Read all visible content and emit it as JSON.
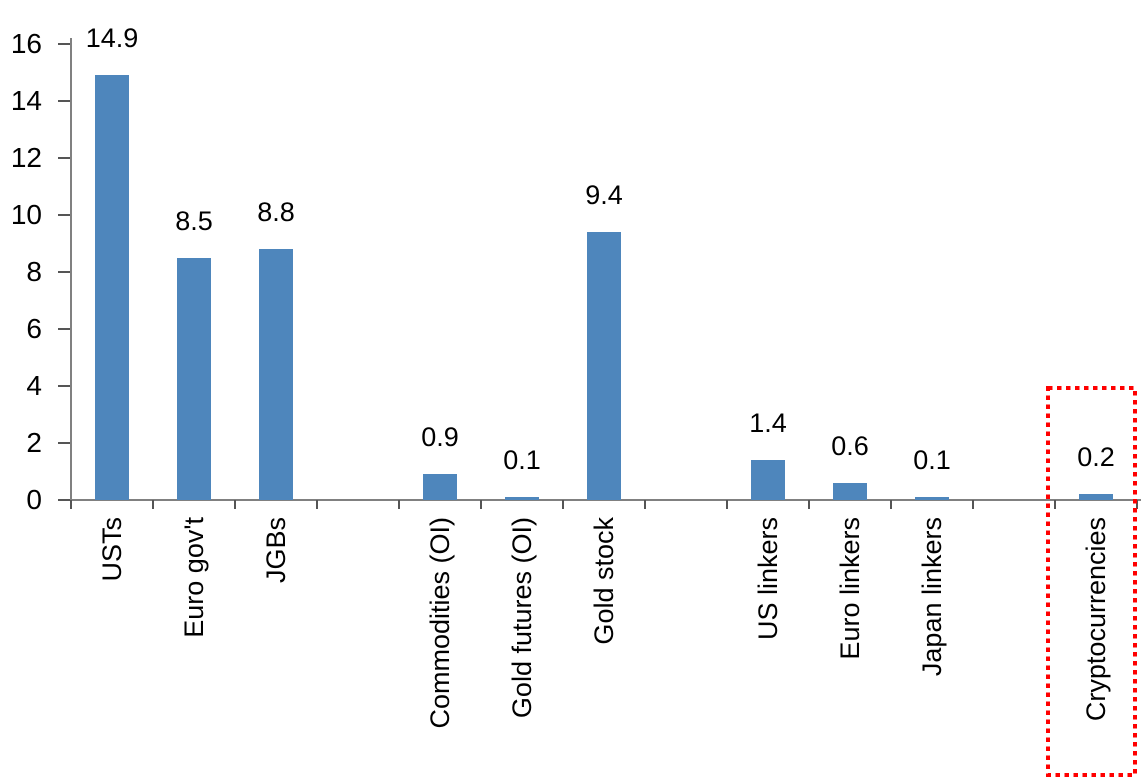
{
  "chart_data": {
    "type": "bar",
    "categories": [
      "USTs",
      "Euro gov't",
      "JGBs",
      "Commodities (OI)",
      "Gold futures (OI)",
      "Gold stock",
      "US linkers",
      "Euro linkers",
      "Japan linkers",
      "Cryptocurrencies"
    ],
    "values": [
      14.9,
      8.5,
      8.8,
      0.9,
      0.1,
      9.4,
      1.4,
      0.6,
      0.1,
      0.2
    ],
    "data_labels": [
      "14.9",
      "8.5",
      "8.8",
      "0.9",
      "0.1",
      "9.4",
      "1.4",
      "0.6",
      "0.1",
      "0.2"
    ],
    "slots": [
      0,
      1,
      2,
      4,
      5,
      6,
      8,
      9,
      10,
      12
    ],
    "n_slots": 13,
    "group_gaps_after": [
      "JGBs",
      "Gold stock",
      "Japan linkers"
    ],
    "title": "",
    "xlabel": "",
    "ylabel": "",
    "ylim": [
      0,
      16
    ],
    "yticks": [
      0,
      2,
      4,
      6,
      8,
      10,
      12,
      14,
      16
    ],
    "grid": false,
    "legend": "none",
    "bar_color": "#4E86BC",
    "axis_color": "#808080",
    "tick_color": "#555555",
    "label_color": "#000000",
    "highlight": {
      "category": "Cryptocurrencies",
      "style": "dotted-box",
      "color": "#FF0000"
    }
  }
}
